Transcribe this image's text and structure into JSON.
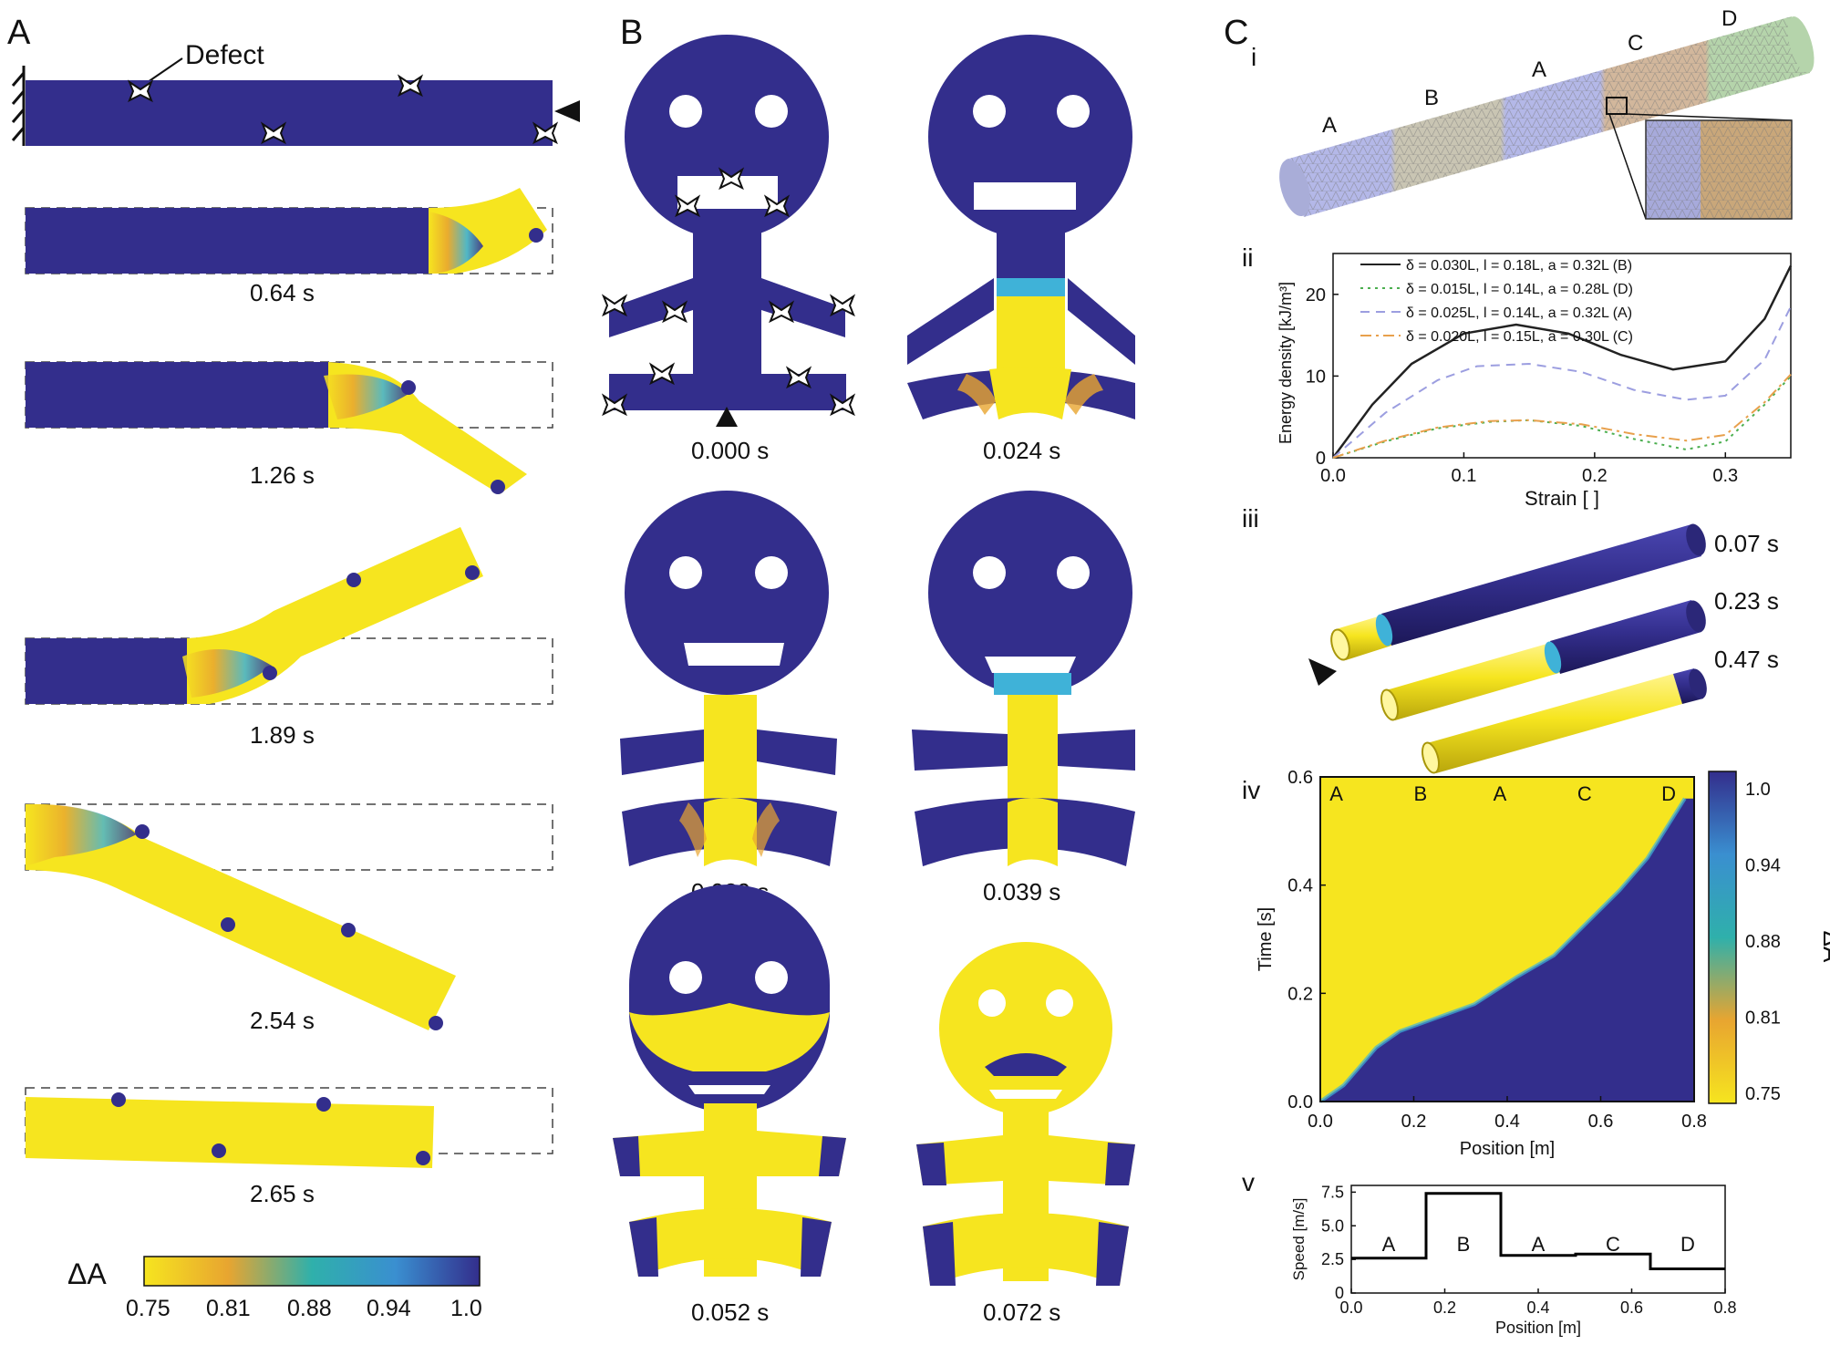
{
  "panel_a": {
    "letter": "A",
    "defect_label": "Defect",
    "times": [
      "0.64 s",
      "1.26 s",
      "1.89 s",
      "2.54 s",
      "2.65 s"
    ],
    "colorbar": {
      "label": "ΔA",
      "ticks": [
        "0.75",
        "0.81",
        "0.88",
        "0.94",
        "1.0"
      ]
    }
  },
  "panel_b": {
    "letter": "B",
    "times": [
      "0.000 s",
      "0.024 s",
      "0.029 s",
      "0.039 s",
      "0.052 s",
      "0.072 s"
    ]
  },
  "panel_c": {
    "letter": "C",
    "sub_i": "i",
    "sub_ii": "ii",
    "sub_iii": "iii",
    "sub_iv": "iv",
    "sub_v": "v",
    "segments_i": [
      "A",
      "B",
      "A",
      "C",
      "D"
    ],
    "tube_times": [
      "0.07 s",
      "0.23 s",
      "0.47 s"
    ]
  },
  "colors": {
    "blue": "#332e8c",
    "yellow": "#f6e51f",
    "orange": "#e8a530",
    "cyan": "#3fb2d8",
    "dashed_outline": "#444444"
  },
  "chart_data": [
    {
      "type": "line",
      "panel": "Cii",
      "xlabel": "Strain [ ]",
      "ylabel": "Energy density [kJ/m³]",
      "xlim": [
        0.0,
        0.35
      ],
      "ylim": [
        0,
        25
      ],
      "xticks": [
        "0.0",
        "0.1",
        "0.2",
        "0.3"
      ],
      "yticks": [
        "0",
        "10",
        "20"
      ],
      "legend_position": "top",
      "series": [
        {
          "name": "δ = 0.030L, l = 0.18L, a = 0.32L (B)",
          "color": "#222222",
          "dash": "solid",
          "x": [
            0,
            0.03,
            0.06,
            0.1,
            0.14,
            0.18,
            0.22,
            0.26,
            0.3,
            0.33,
            0.35
          ],
          "y": [
            0,
            6.5,
            11.5,
            15.2,
            16.3,
            15.2,
            12.6,
            10.8,
            11.8,
            17,
            23.5
          ]
        },
        {
          "name": "δ = 0.015L, l = 0.14L, a = 0.28L (D)",
          "color": "#4caf50",
          "dash": "dot",
          "x": [
            0,
            0.04,
            0.08,
            0.12,
            0.15,
            0.19,
            0.23,
            0.27,
            0.3,
            0.33,
            0.35
          ],
          "y": [
            0,
            2,
            3.6,
            4.4,
            4.6,
            3.9,
            2.3,
            1.0,
            2.0,
            6.5,
            10
          ]
        },
        {
          "name": "δ = 0.025L, l = 0.14L, a = 0.32L (A)",
          "color": "#9c9ee0",
          "dash": "dash",
          "x": [
            0,
            0.04,
            0.08,
            0.11,
            0.15,
            0.19,
            0.23,
            0.27,
            0.3,
            0.33,
            0.35
          ],
          "y": [
            0,
            5.5,
            9.5,
            11.2,
            11.5,
            10.5,
            8.3,
            7.1,
            7.6,
            12,
            18.5
          ]
        },
        {
          "name": "δ = 0.020L, l = 0.15L, a = 0.30L (C)",
          "color": "#e8a04c",
          "dash": "dashdot",
          "x": [
            0,
            0.04,
            0.08,
            0.12,
            0.15,
            0.19,
            0.23,
            0.27,
            0.3,
            0.33,
            0.35
          ],
          "y": [
            0,
            2.1,
            3.7,
            4.5,
            4.6,
            4.1,
            2.9,
            2.1,
            2.8,
            6.8,
            10.2
          ]
        }
      ]
    },
    {
      "type": "heatmap",
      "panel": "Civ",
      "xlabel": "Position [m]",
      "ylabel": "Time [s]",
      "xlim": [
        0.0,
        0.8
      ],
      "ylim": [
        0.0,
        0.6
      ],
      "xticks": [
        "0.0",
        "0.2",
        "0.4",
        "0.6",
        "0.8"
      ],
      "yticks": [
        "0.0",
        "0.2",
        "0.4",
        "0.6"
      ],
      "segment_labels": [
        "A",
        "B",
        "A",
        "C",
        "D"
      ],
      "segment_label_x": [
        0.02,
        0.2,
        0.37,
        0.55,
        0.73
      ],
      "front_position": [
        0.0,
        0.05,
        0.12,
        0.17,
        0.33,
        0.42,
        0.5,
        0.57,
        0.64,
        0.7,
        0.78
      ],
      "front_time": [
        0.0,
        0.03,
        0.1,
        0.13,
        0.18,
        0.23,
        0.27,
        0.33,
        0.39,
        0.45,
        0.56
      ],
      "colorbar_label": "ΔA",
      "colorbar_ticks": [
        "1.0",
        "0.94",
        "0.88",
        "0.81",
        "0.75"
      ]
    },
    {
      "type": "line",
      "panel": "Cv",
      "xlabel": "Position [m]",
      "ylabel": "Speed [m/s]",
      "xlim": [
        0.0,
        0.8
      ],
      "ylim": [
        0,
        8
      ],
      "xticks": [
        "0.0",
        "0.2",
        "0.4",
        "0.6",
        "0.8"
      ],
      "yticks": [
        "0",
        "2.5",
        "5.0",
        "7.5"
      ],
      "series": [
        {
          "color": "#000000",
          "x": [
            0.0,
            0.16,
            0.16,
            0.32,
            0.32,
            0.48,
            0.48,
            0.64,
            0.64,
            0.8
          ],
          "y": [
            2.6,
            2.6,
            7.4,
            7.4,
            2.8,
            2.8,
            2.9,
            2.9,
            1.8,
            1.8
          ]
        }
      ],
      "segment_labels": [
        "A",
        "B",
        "A",
        "C",
        "D"
      ],
      "segment_label_x": [
        0.08,
        0.24,
        0.4,
        0.56,
        0.72
      ]
    }
  ]
}
